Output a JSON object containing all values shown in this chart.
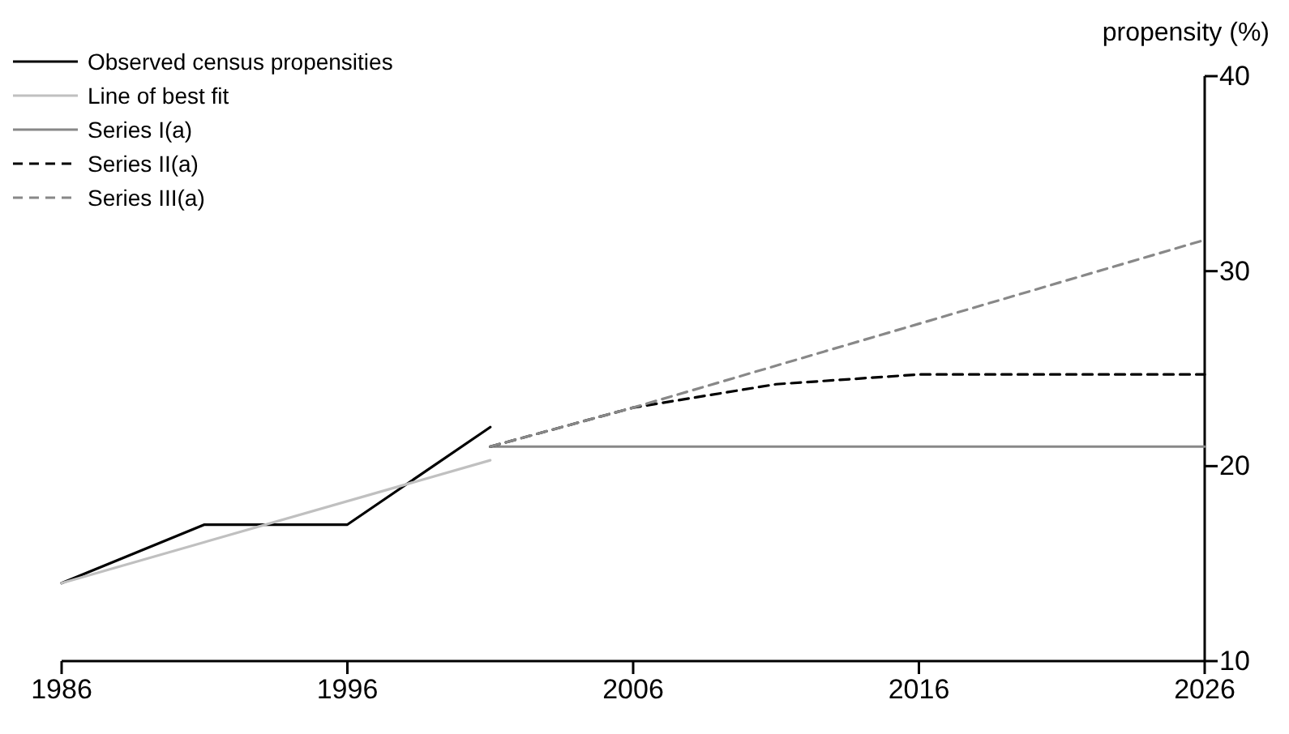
{
  "chart_data": {
    "type": "line",
    "ylabel": "propensity (%)",
    "xlim": [
      1986,
      2026
    ],
    "xticks": [
      1986,
      1996,
      2006,
      2016,
      2026
    ],
    "ylim": [
      10,
      40
    ],
    "yticks": [
      10,
      20,
      30,
      40
    ],
    "legend": "top left",
    "grid": false,
    "marker": "none",
    "series": [
      {
        "name": "Observed census propensities",
        "color": "#000000",
        "line_style": "solid",
        "x": [
          1986,
          1991,
          1996,
          2001
        ],
        "values": [
          14,
          17,
          17,
          22
        ]
      },
      {
        "name": "Line of best fit",
        "color": "#c0c0c0",
        "line_style": "solid",
        "x": [
          1986,
          2001
        ],
        "values": [
          14,
          20.3
        ]
      },
      {
        "name": "Series I(a)",
        "color": "#888888",
        "line_style": "solid",
        "x": [
          2001,
          2026
        ],
        "values": [
          21,
          21
        ]
      },
      {
        "name": "Series II(a)",
        "color": "#000000",
        "line_style": "dashed",
        "x": [
          2001,
          2006,
          2011,
          2016,
          2026
        ],
        "values": [
          21,
          23,
          24.2,
          24.7,
          24.7
        ]
      },
      {
        "name": "Series III(a)",
        "color": "#888888",
        "line_style": "dashed",
        "x": [
          2001,
          2006,
          2016,
          2026
        ],
        "values": [
          21,
          23,
          27.3,
          31.6
        ]
      }
    ]
  }
}
